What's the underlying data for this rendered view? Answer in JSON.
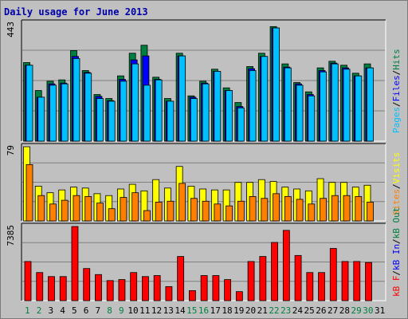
{
  "title": "Daily usage for June 2013",
  "colors": {
    "hits": "#008040",
    "files": "#0000ff",
    "pages": "#00c0ff",
    "visits": "#ffff00",
    "sites": "#ff8000",
    "kbf": "#ff0000",
    "kbin": "#0000ff",
    "kbout": "#008040",
    "panel_bg": "#c0c0c0",
    "day_green": "#008040"
  },
  "chart_data": [
    {
      "type": "bar",
      "title": "Daily usage for June 2013",
      "panel": "hits-files-pages",
      "ymax_label": "443",
      "ylim": [
        0,
        443
      ],
      "legend_position": "right",
      "legend": [
        {
          "name": "Pages",
          "color": "#00c0ff"
        },
        {
          "name": "Files",
          "color": "#0000ff"
        },
        {
          "name": "Hits",
          "color": "#008040"
        }
      ],
      "categories": [
        "1",
        "2",
        "3",
        "4",
        "5",
        "6",
        "7",
        "8",
        "9",
        "10",
        "11",
        "12",
        "13",
        "14",
        "15",
        "16",
        "17",
        "18",
        "19",
        "20",
        "21",
        "22",
        "23",
        "24",
        "25",
        "26",
        "27",
        "28",
        "29",
        "30",
        "31"
      ],
      "series": [
        {
          "name": "Hits",
          "values": [
            295,
            190,
            225,
            230,
            340,
            265,
            175,
            160,
            245,
            330,
            360,
            240,
            160,
            330,
            170,
            225,
            270,
            200,
            145,
            280,
            330,
            430,
            290,
            220,
            185,
            275,
            300,
            285,
            255,
            290,
            null
          ]
        },
        {
          "name": "Files",
          "values": [
            285,
            165,
            215,
            218,
            318,
            258,
            168,
            152,
            232,
            305,
            320,
            232,
            150,
            320,
            165,
            218,
            262,
            190,
            130,
            272,
            318,
            425,
            278,
            215,
            175,
            265,
            293,
            275,
            245,
            275,
            null
          ]
        },
        {
          "name": "Pages",
          "values": [
            285,
            165,
            210,
            215,
            310,
            255,
            160,
            150,
            225,
            290,
            210,
            230,
            150,
            320,
            160,
            215,
            262,
            190,
            125,
            265,
            318,
            425,
            275,
            210,
            170,
            260,
            290,
            270,
            245,
            275,
            null
          ]
        }
      ]
    },
    {
      "type": "bar",
      "panel": "visits-sites",
      "ymax_label": "79",
      "ylim": [
        0,
        79
      ],
      "legend_position": "right",
      "legend": [
        {
          "name": "Sites",
          "color": "#ff8000"
        },
        {
          "name": "Visits",
          "color": "#ffff00"
        }
      ],
      "categories": [
        "1",
        "2",
        "3",
        "4",
        "5",
        "6",
        "7",
        "8",
        "9",
        "10",
        "11",
        "12",
        "13",
        "14",
        "15",
        "16",
        "17",
        "18",
        "19",
        "20",
        "21",
        "22",
        "23",
        "24",
        "25",
        "26",
        "27",
        "28",
        "29",
        "30",
        "31"
      ],
      "series": [
        {
          "name": "Visits",
          "values": [
            79,
            37,
            30,
            33,
            36,
            35,
            29,
            27,
            34,
            39,
            32,
            44,
            35,
            58,
            37,
            34,
            33,
            33,
            41,
            41,
            44,
            42,
            36,
            34,
            32,
            45,
            41,
            41,
            36,
            38,
            null
          ]
        },
        {
          "name": "Sites",
          "values": [
            60,
            27,
            18,
            22,
            27,
            26,
            19,
            13,
            25,
            30,
            11,
            20,
            21,
            40,
            24,
            21,
            18,
            16,
            21,
            26,
            24,
            29,
            26,
            23,
            18,
            24,
            27,
            27,
            26,
            20,
            null
          ]
        }
      ]
    },
    {
      "type": "bar",
      "panel": "kbf-kbin-kbout",
      "ymax_label": "7385",
      "ylim": [
        0,
        7385
      ],
      "legend_position": "right",
      "legend": [
        {
          "name": "kB F",
          "color": "#ff0000"
        },
        {
          "name": "kB In",
          "color": "#0000ff"
        },
        {
          "name": "kB Out",
          "color": "#008040"
        }
      ],
      "categories": [
        "1",
        "2",
        "3",
        "4",
        "5",
        "6",
        "7",
        "8",
        "9",
        "10",
        "11",
        "12",
        "13",
        "14",
        "15",
        "16",
        "17",
        "18",
        "19",
        "20",
        "21",
        "22",
        "23",
        "24",
        "25",
        "26",
        "27",
        "28",
        "29",
        "30",
        "31"
      ],
      "series": [
        {
          "name": "kB F",
          "values": [
            3900,
            2800,
            2400,
            2400,
            7385,
            3200,
            2600,
            2000,
            2100,
            2800,
            2400,
            2500,
            1400,
            4400,
            1000,
            2500,
            2500,
            2100,
            900,
            3900,
            4400,
            5800,
            7000,
            4500,
            2800,
            2800,
            5200,
            3900,
            3900,
            3800,
            null
          ]
        }
      ]
    }
  ],
  "x_axis": {
    "labels": [
      "1",
      "2",
      "3",
      "4",
      "5",
      "6",
      "7",
      "8",
      "9",
      "10",
      "11",
      "12",
      "13",
      "14",
      "15",
      "16",
      "17",
      "18",
      "19",
      "20",
      "21",
      "22",
      "23",
      "24",
      "25",
      "26",
      "27",
      "28",
      "29",
      "30",
      "31"
    ],
    "weekend_days": [
      "1",
      "2",
      "8",
      "9",
      "15",
      "16",
      "22",
      "23",
      "29",
      "30"
    ]
  }
}
